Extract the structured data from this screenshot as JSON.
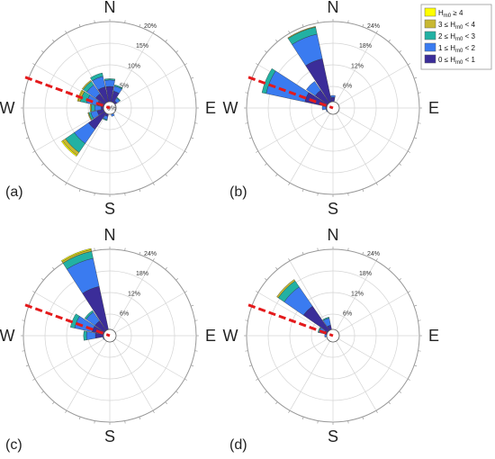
{
  "chart_data": [
    {
      "type": "polar-bar",
      "panel_label": "(a)",
      "cardinal_labels": [
        "N",
        "E",
        "S",
        "W"
      ],
      "rlim": [
        0,
        20
      ],
      "radial_ticks": [
        5,
        10,
        15,
        20
      ],
      "radial_tick_labels": [
        "5%",
        "10%",
        "15%",
        "20%"
      ],
      "center_label": "0%",
      "reference_direction_deg": 290,
      "reference_line_color": "#e41a1c",
      "sectors": [
        {
          "dir": 0,
          "values": [
            5.0,
            1.5,
            0.3,
            0.0,
            0.0
          ]
        },
        {
          "dir": 22.5,
          "values": [
            4.0,
            1.2,
            0.3,
            0.0,
            0.0
          ]
        },
        {
          "dir": 45,
          "values": [
            2.0,
            0.8,
            0.2,
            0.0,
            0.0
          ]
        },
        {
          "dir": 67.5,
          "values": [
            1.0,
            0.5,
            0.0,
            0.0,
            0.0
          ]
        },
        {
          "dir": 90,
          "values": [
            0.8,
            0.3,
            0.0,
            0.0,
            0.0
          ]
        },
        {
          "dir": 112.5,
          "values": [
            0.8,
            0.3,
            0.0,
            0.0,
            0.0
          ]
        },
        {
          "dir": 135,
          "values": [
            1.0,
            0.3,
            0.0,
            0.0,
            0.0
          ]
        },
        {
          "dir": 157.5,
          "values": [
            1.5,
            0.5,
            0.0,
            0.0,
            0.0
          ]
        },
        {
          "dir": 180,
          "values": [
            1.0,
            0.3,
            0.0,
            0.0,
            0.0
          ]
        },
        {
          "dir": 202.5,
          "values": [
            2.0,
            0.8,
            0.2,
            0.0,
            0.0
          ]
        },
        {
          "dir": 225,
          "values": [
            6.0,
            4.0,
            2.5,
            0.8,
            0.3
          ]
        },
        {
          "dir": 247.5,
          "values": [
            3.0,
            1.5,
            0.5,
            0.2,
            0.0
          ]
        },
        {
          "dir": 270,
          "values": [
            2.0,
            1.5,
            0.8,
            0.3,
            0.0
          ]
        },
        {
          "dir": 292.5,
          "values": [
            3.0,
            2.5,
            1.5,
            0.5,
            0.2
          ]
        },
        {
          "dir": 315,
          "values": [
            4.0,
            2.5,
            1.0,
            0.3,
            0.0
          ]
        },
        {
          "dir": 337.5,
          "values": [
            5.0,
            2.5,
            0.8,
            0.0,
            0.0
          ]
        }
      ]
    },
    {
      "type": "polar-bar",
      "panel_label": "(b)",
      "cardinal_labels": [
        "N",
        "E",
        "S",
        "W"
      ],
      "rlim": [
        0,
        24
      ],
      "radial_ticks": [
        6,
        12,
        18,
        24
      ],
      "radial_tick_labels": [
        "6%",
        "12%",
        "18%",
        "24%"
      ],
      "reference_direction_deg": 290,
      "reference_line_color": "#e41a1c",
      "sectors": [
        {
          "dir": 0,
          "values": [
            3.0,
            0.5,
            0.0,
            0.0,
            0.0
          ]
        },
        {
          "dir": 22.5,
          "values": [
            1.0,
            0.2,
            0.0,
            0.0,
            0.0
          ]
        },
        {
          "dir": 45,
          "values": [
            0.5,
            0.0,
            0.0,
            0.0,
            0.0
          ]
        },
        {
          "dir": 135,
          "values": [
            0.5,
            0.0,
            0.0,
            0.0,
            0.0
          ]
        },
        {
          "dir": 180,
          "values": [
            0.5,
            0.0,
            0.0,
            0.0,
            0.0
          ]
        },
        {
          "dir": 225,
          "values": [
            0.5,
            0.0,
            0.0,
            0.0,
            0.0
          ]
        },
        {
          "dir": 247.5,
          "values": [
            1.5,
            0.5,
            0.0,
            0.0,
            0.0
          ]
        },
        {
          "dir": 270,
          "values": [
            2.0,
            1.0,
            0.0,
            0.0,
            0.0
          ]
        },
        {
          "dir": 292.5,
          "values": [
            8.0,
            11.0,
            1.2,
            0.0,
            0.0
          ]
        },
        {
          "dir": 315,
          "values": [
            6.0,
            3.0,
            0.0,
            0.0,
            0.0
          ]
        },
        {
          "dir": 337.5,
          "values": [
            14.0,
            7.0,
            2.0,
            0.2,
            0.0
          ]
        }
      ]
    },
    {
      "type": "polar-bar",
      "panel_label": "(c)",
      "cardinal_labels": [
        "N",
        "E",
        "S",
        "W"
      ],
      "rlim": [
        0,
        24
      ],
      "radial_ticks": [
        6,
        12,
        18,
        24
      ],
      "radial_tick_labels": [
        "6%",
        "12%",
        "18%",
        "24%"
      ],
      "reference_direction_deg": 290,
      "reference_line_color": "#e41a1c",
      "sectors": [
        {
          "dir": 0,
          "values": [
            1.5,
            0.3,
            0.0,
            0.0,
            0.0
          ]
        },
        {
          "dir": 22.5,
          "values": [
            0.5,
            0.0,
            0.0,
            0.0,
            0.0
          ]
        },
        {
          "dir": 135,
          "values": [
            0.3,
            0.0,
            0.0,
            0.0,
            0.0
          ]
        },
        {
          "dir": 180,
          "values": [
            0.3,
            0.0,
            0.0,
            0.0,
            0.0
          ]
        },
        {
          "dir": 225,
          "values": [
            0.5,
            0.0,
            0.0,
            0.0,
            0.0
          ]
        },
        {
          "dir": 247.5,
          "values": [
            1.5,
            0.5,
            0.0,
            0.0,
            0.0
          ]
        },
        {
          "dir": 270,
          "values": [
            4.0,
            2.5,
            0.8,
            0.0,
            0.0
          ]
        },
        {
          "dir": 292.5,
          "values": [
            5.0,
            5.0,
            1.2,
            0.0,
            0.0
          ]
        },
        {
          "dir": 315,
          "values": [
            5.0,
            3.0,
            0.5,
            0.0,
            0.0
          ]
        },
        {
          "dir": 337.5,
          "values": [
            14.0,
            8.0,
            2.0,
            0.5,
            0.3
          ]
        }
      ]
    },
    {
      "type": "polar-bar",
      "panel_label": "(d)",
      "cardinal_labels": [
        "N",
        "E",
        "S",
        "W"
      ],
      "rlim": [
        0,
        24
      ],
      "radial_ticks": [
        6,
        12,
        18,
        24
      ],
      "radial_tick_labels": [
        "6%",
        "12%",
        "18%",
        "24%"
      ],
      "reference_direction_deg": 290,
      "reference_line_color": "#e41a1c",
      "sectors": [
        {
          "dir": 0,
          "values": [
            1.0,
            0.2,
            0.0,
            0.0,
            0.0
          ]
        },
        {
          "dir": 22.5,
          "values": [
            0.4,
            0.0,
            0.0,
            0.0,
            0.0
          ]
        },
        {
          "dir": 180,
          "values": [
            0.3,
            0.0,
            0.0,
            0.0,
            0.0
          ]
        },
        {
          "dir": 247.5,
          "values": [
            1.0,
            0.3,
            0.0,
            0.0,
            0.0
          ]
        },
        {
          "dir": 270,
          "values": [
            1.5,
            0.8,
            0.0,
            0.0,
            0.0
          ]
        },
        {
          "dir": 292.5,
          "values": [
            2.5,
            1.5,
            0.3,
            0.0,
            0.0
          ]
        },
        {
          "dir": 315,
          "values": [
            10.0,
            6.5,
            2.0,
            0.5,
            0.0
          ]
        },
        {
          "dir": 337.5,
          "values": [
            3.0,
            2.0,
            0.3,
            0.0,
            0.0
          ]
        }
      ]
    }
  ],
  "legend": {
    "items": [
      {
        "label": "H",
        "sub": "m0",
        "rest": " ≥ 4",
        "color": "#ffff00"
      },
      {
        "label": "3 ≤ H",
        "sub": "m0",
        "rest": " < 4",
        "color": "#c8b833"
      },
      {
        "label": "2 ≤ H",
        "sub": "m0",
        "rest": " < 3",
        "color": "#22b1a3"
      },
      {
        "label": "1 ≤ H",
        "sub": "m0",
        "rest": " < 2",
        "color": "#3a7bf0"
      },
      {
        "label": "0 ≤ H",
        "sub": "m0",
        "rest": " < 1",
        "color": "#3b2d99"
      }
    ]
  }
}
